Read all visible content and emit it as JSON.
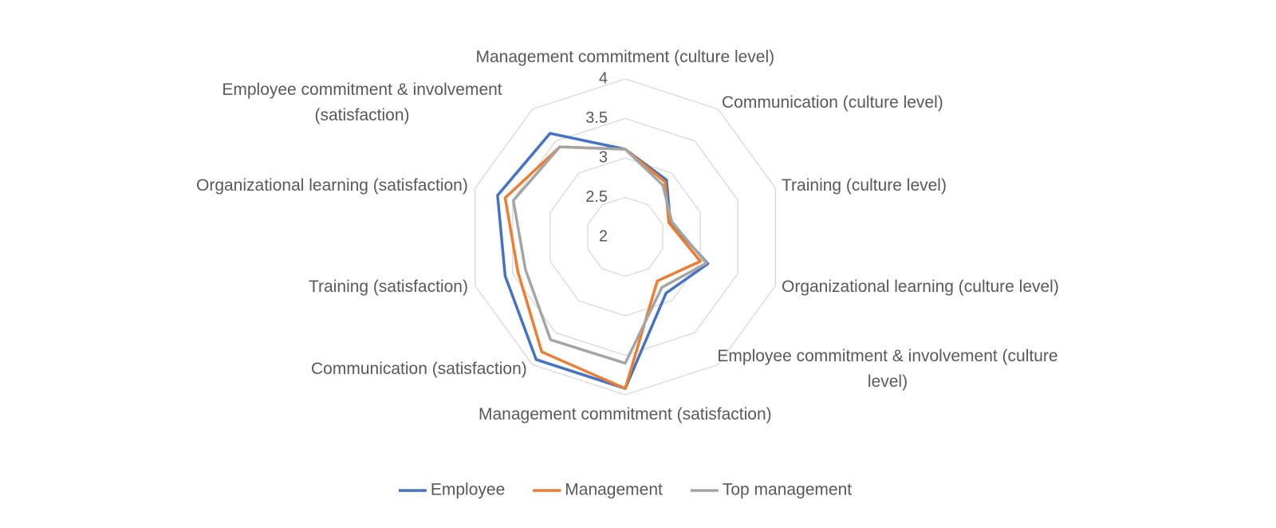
{
  "chart_data": {
    "type": "radar",
    "categories": [
      "Management commitment (culture level)",
      "Communication (culture level)",
      "Training (culture level)",
      "Organizational learning (culture level)",
      "Employee commitment & involvement (culture level)",
      "Management commitment (satisfaction)",
      "Communication (satisfaction)",
      "Training (satisfaction)",
      "Organizational learning (satisfaction)",
      "Employee commitment & involvement (satisfaction)"
    ],
    "series": [
      {
        "name": "Employee",
        "color": "#4472c4",
        "values": [
          3.11,
          2.89,
          2.6,
          3.1,
          2.88,
          3.92,
          3.92,
          3.6,
          3.7,
          3.62
        ]
      },
      {
        "name": "Management",
        "color": "#ed7d31",
        "values": [
          3.11,
          2.86,
          2.58,
          3.0,
          2.69,
          3.92,
          3.8,
          3.43,
          3.6,
          3.41
        ]
      },
      {
        "name": "Top management",
        "color": "#a5a5a5",
        "values": [
          3.11,
          2.81,
          2.62,
          3.08,
          2.79,
          3.6,
          3.61,
          3.33,
          3.49,
          3.41
        ]
      }
    ],
    "rlim": [
      2,
      4
    ],
    "rticks": [
      2,
      2.5,
      3,
      3.5,
      4
    ],
    "grid": true,
    "legend": "bottom"
  }
}
